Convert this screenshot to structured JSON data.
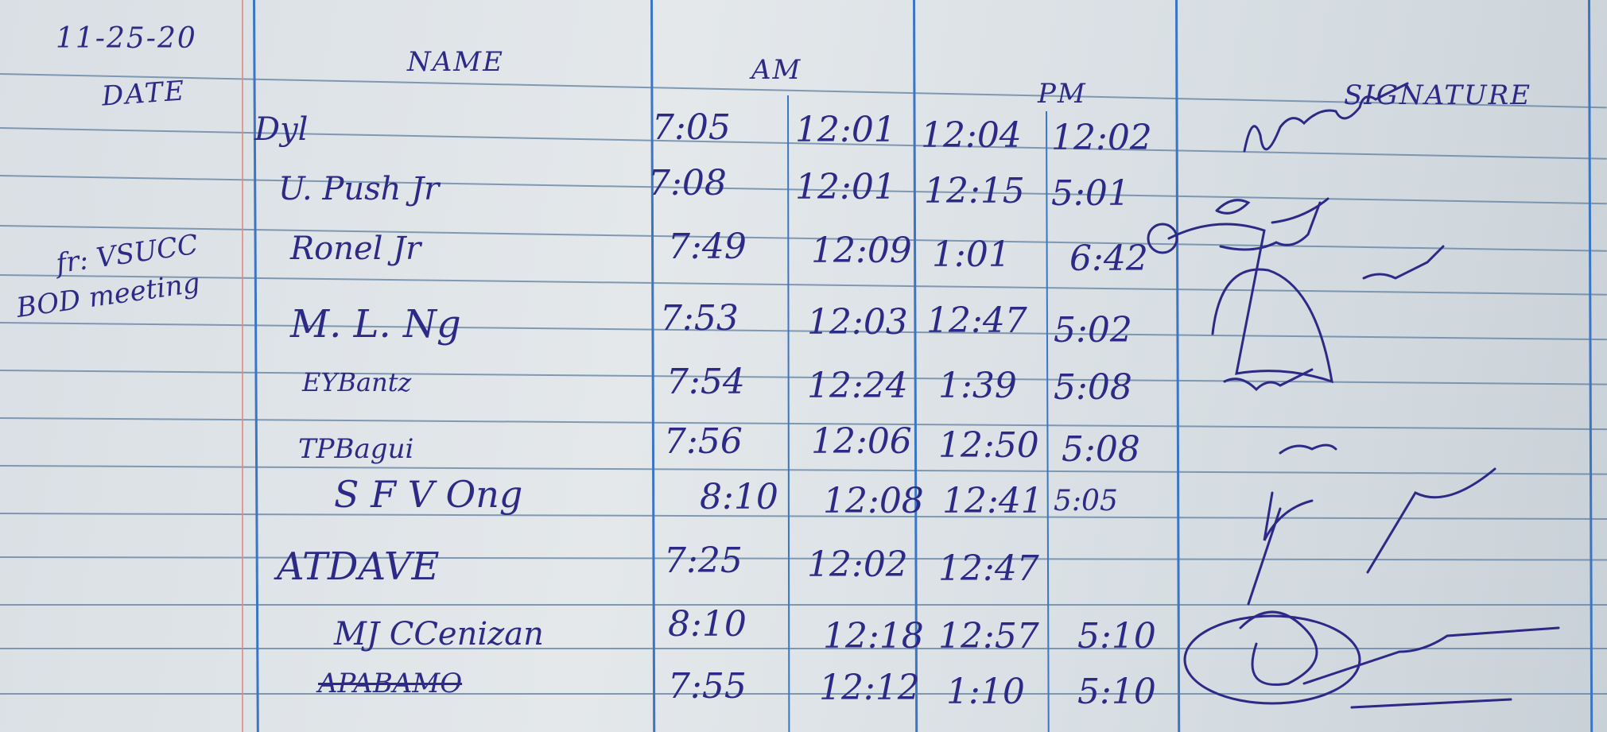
{
  "header": {
    "date_written": "11-25-20",
    "columns": {
      "date": "DATE",
      "name": "NAME",
      "am": "AM",
      "pm": "PM",
      "signature": "SIGNATURE"
    }
  },
  "margin_note": {
    "line1": "fr: VSUCC",
    "line2": "BOD meeting"
  },
  "ink_color": "#2c2a86",
  "rows": [
    {
      "name": "Dyl",
      "am_in": "7:05",
      "am_out": "12:01",
      "pm_in": "12:04",
      "pm_out": "12:02"
    },
    {
      "name": "U. Push Jr",
      "am_in": "7:08",
      "am_out": "12:01",
      "pm_in": "12:15",
      "pm_out": "5:01"
    },
    {
      "name": "Ronel Jr",
      "am_in": "7:49",
      "am_out": "12:09",
      "pm_in": "1:01",
      "pm_out": "6:42"
    },
    {
      "name": "M. L. Ng",
      "am_in": "7:53",
      "am_out": "12:03",
      "pm_in": "12:47",
      "pm_out": "5:02"
    },
    {
      "name": "EYBantz",
      "am_in": "7:54",
      "am_out": "12:24",
      "pm_in": "1:39",
      "pm_out": "5:08"
    },
    {
      "name": "TPBagui",
      "am_in": "7:56",
      "am_out": "12:06",
      "pm_in": "12:50",
      "pm_out": "5:08"
    },
    {
      "name": "S F V Ong",
      "am_in": "8:10",
      "am_out": "12:08",
      "pm_in": "12:41",
      "pm_out": "5:05"
    },
    {
      "name": "ATDAVE",
      "am_in": "7:25",
      "am_out": "12:02",
      "pm_in": "12:47",
      "pm_out": ""
    },
    {
      "name": "MJ CCenizan",
      "am_in": "8:10",
      "am_out": "12:18",
      "pm_in": "12:57",
      "pm_out": "5:10"
    },
    {
      "name": "APABAMO",
      "am_in": "7:55",
      "am_out": "12:12",
      "pm_in": "1:10",
      "pm_out": "5:10"
    }
  ]
}
